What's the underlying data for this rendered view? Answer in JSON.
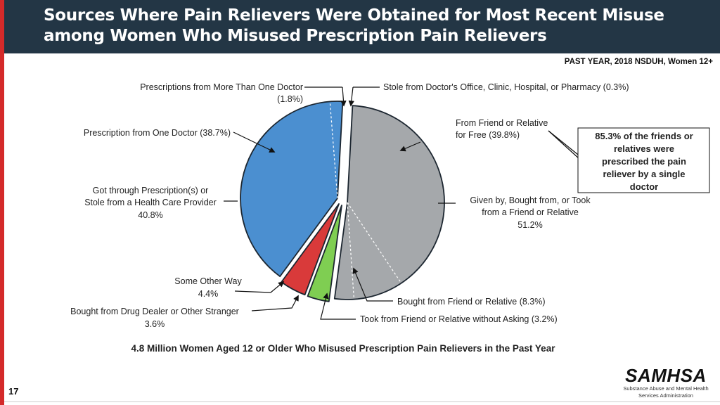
{
  "slide": {
    "title_line1": "Sources Where Pain Relievers Were Obtained for Most Recent Misuse",
    "title_line2": "among Women Who Misused Prescription Pain Relievers",
    "subtitle": "PAST YEAR, 2018 NSDUH, Women 12+",
    "slide_number": "17",
    "logo_text": "SAMHSA",
    "logo_subtext_1": "Substance Abuse and Mental Health",
    "logo_subtext_2": "Services Administration"
  },
  "chart_data": {
    "type": "pie",
    "title": "4.8 Million Women Aged 12 or Older Who Misused Prescription Pain Relievers in the Past Year",
    "slices": [
      {
        "name": "Stole from Doctor's Office, Clinic, Hospital, or Pharmacy",
        "value": 0.3,
        "group": "provider",
        "color": "#4b8fd0"
      },
      {
        "name": "From Friend or Relative for Free",
        "value": 39.8,
        "group": "friend",
        "color": "#a5a8ab"
      },
      {
        "name": "Bought from Friend or Relative",
        "value": 8.3,
        "group": "friend",
        "color": "#a5a8ab"
      },
      {
        "name": "Took from Friend or Relative without Asking",
        "value": 3.2,
        "group": "friend",
        "color": "#a5a8ab"
      },
      {
        "name": "Bought from Drug Dealer or Other Stranger",
        "value": 3.6,
        "group": "dealer",
        "color": "#7fce52"
      },
      {
        "name": "Some Other Way",
        "value": 4.4,
        "group": "other",
        "color": "#d93a3a"
      },
      {
        "name": "Prescription from One Doctor",
        "value": 38.7,
        "group": "provider",
        "color": "#4b8fd0"
      },
      {
        "name": "Prescriptions from More Than One Doctor",
        "value": 1.8,
        "group": "provider",
        "color": "#4b8fd0"
      }
    ],
    "groups": [
      {
        "key": "provider",
        "label_line1": "Got through Prescription(s) or",
        "label_line2": "Stole from a Health Care Provider",
        "value_text": "40.8%",
        "value": 40.8
      },
      {
        "key": "friend",
        "label_line1": "Given by, Bought from, or Took",
        "label_line2": "from a Friend or Relative",
        "value_text": "51.2%",
        "value": 51.2
      }
    ],
    "labels": {
      "more_than_one_doctor_1": "Prescriptions from More Than One Doctor",
      "more_than_one_doctor_2": "(1.8%)",
      "stole": "Stole from Doctor's Office, Clinic, Hospital, or Pharmacy (0.3%)",
      "one_doctor": "Prescription from One Doctor (38.7%)",
      "friend_free_1": "From Friend or Relative",
      "friend_free_2": "for Free (39.8%)",
      "other_way_1": "Some Other Way",
      "other_way_2": "4.4%",
      "dealer_1": "Bought from Drug Dealer or Other Stranger",
      "dealer_2": "3.6%",
      "bought_friend": "Bought from Friend or Relative (8.3%)",
      "took_friend": "Took from Friend or Relative without Asking (3.2%)"
    },
    "callout": {
      "line1": "85.3% of the friends or",
      "line2": "relatives were",
      "line3": "prescribed the pain",
      "line4": "reliever by a single",
      "line5": "doctor"
    }
  }
}
